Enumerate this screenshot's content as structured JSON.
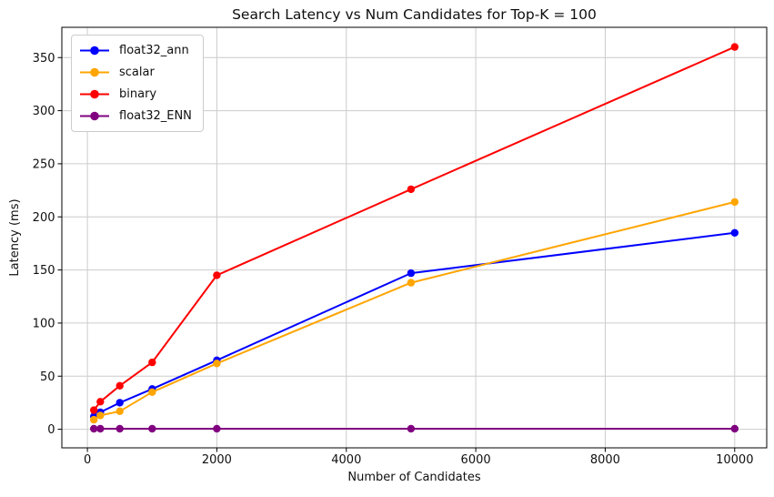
{
  "title": "Search Latency vs Num Candidates for Top-K = 100",
  "chart_data": {
    "type": "line",
    "title": "Search Latency vs Num Candidates for Top-K = 100",
    "xlabel": "Number of Candidates",
    "ylabel": "Latency (ms)",
    "x": [
      100,
      200,
      500,
      1000,
      2000,
      5000,
      10000
    ],
    "series": [
      {
        "name": "float32_ann",
        "color": "#0000ff",
        "values": [
          12,
          16,
          25,
          38,
          65,
          147,
          185
        ]
      },
      {
        "name": "scalar",
        "color": "#ffa500",
        "values": [
          9,
          13,
          17,
          35,
          62,
          138,
          214
        ]
      },
      {
        "name": "binary",
        "color": "#ff0000",
        "values": [
          18,
          26,
          41,
          63,
          145,
          226,
          360
        ]
      },
      {
        "name": "float32_ENN",
        "color": "#800080",
        "values": [
          0.5,
          0.5,
          0.5,
          0.5,
          0.5,
          0.5,
          0.5
        ]
      }
    ],
    "x_ticks": [
      0,
      2000,
      4000,
      6000,
      8000,
      10000
    ],
    "y_ticks": [
      0,
      50,
      100,
      150,
      200,
      250,
      300,
      350
    ],
    "xlim": [
      -395,
      10495
    ],
    "ylim": [
      -17.5,
      378.5
    ],
    "grid": true,
    "legend_position": "upper-left",
    "colors": {
      "grid": "#cccccc",
      "spine": "#000000",
      "tick_label": "#0f0f0f",
      "background": "#ffffff"
    }
  }
}
